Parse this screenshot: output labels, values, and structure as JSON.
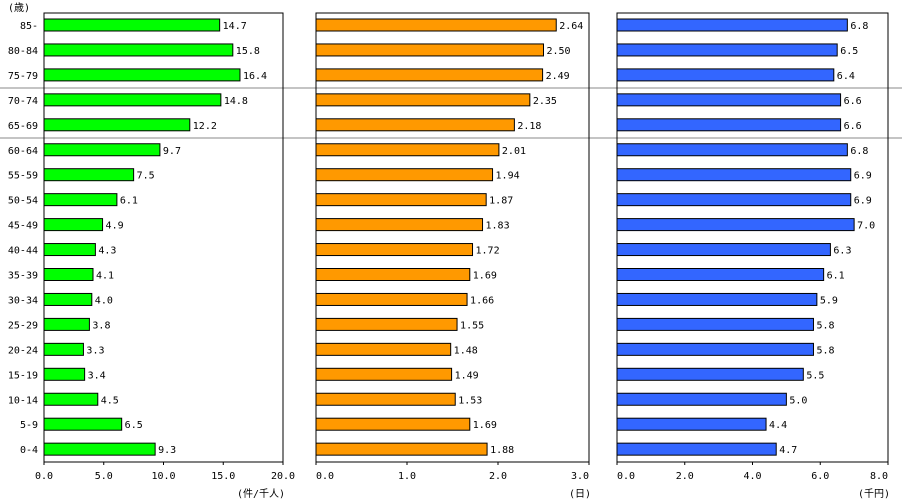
{
  "chart_data": [
    {
      "type": "bar",
      "orientation": "horizontal",
      "categories": [
        "85-",
        "80-84",
        "75-79",
        "70-74",
        "65-69",
        "60-64",
        "55-59",
        "50-54",
        "45-49",
        "40-44",
        "35-39",
        "30-34",
        "25-29",
        "20-24",
        "15-19",
        "10-14",
        "5-9",
        "0-4"
      ],
      "values": [
        14.7,
        15.8,
        16.4,
        14.8,
        12.2,
        9.7,
        7.5,
        6.1,
        4.9,
        4.3,
        4.1,
        4.0,
        3.8,
        3.3,
        3.4,
        4.5,
        6.5,
        9.3
      ],
      "value_labels": [
        "14.7",
        "15.8",
        "16.4",
        "14.8",
        "12.2",
        "9.7",
        "7.5",
        "6.1",
        "4.9",
        "4.3",
        "4.1",
        "4.0",
        "3.8",
        "3.3",
        "3.4",
        "4.5",
        "6.5",
        "9.3"
      ],
      "xlim": [
        0,
        20
      ],
      "ticks": [
        "0.0",
        "5.0",
        "10.0",
        "15.0",
        "20.0"
      ],
      "tick_values": [
        0,
        5,
        10,
        15,
        20
      ],
      "unit": "(件/千人)",
      "color": "#00ff00",
      "ylabel": "(歳)"
    },
    {
      "type": "bar",
      "orientation": "horizontal",
      "values": [
        2.64,
        2.5,
        2.49,
        2.35,
        2.18,
        2.01,
        1.94,
        1.87,
        1.83,
        1.72,
        1.69,
        1.66,
        1.55,
        1.48,
        1.49,
        1.53,
        1.69,
        1.88
      ],
      "value_labels": [
        "2.64",
        "2.50",
        "2.49",
        "2.35",
        "2.18",
        "2.01",
        "1.94",
        "1.87",
        "1.83",
        "1.72",
        "1.69",
        "1.66",
        "1.55",
        "1.48",
        "1.49",
        "1.53",
        "1.69",
        "1.88"
      ],
      "xlim": [
        0,
        3
      ],
      "ticks": [
        "0.0",
        "1.0",
        "2.0",
        "3.0"
      ],
      "tick_values": [
        0,
        1,
        2,
        3
      ],
      "unit": "(日)",
      "color": "#ff9900"
    },
    {
      "type": "bar",
      "orientation": "horizontal",
      "values": [
        6.8,
        6.5,
        6.4,
        6.6,
        6.6,
        6.8,
        6.9,
        6.9,
        7.0,
        6.3,
        6.1,
        5.9,
        5.8,
        5.8,
        5.5,
        5.0,
        4.4,
        4.7
      ],
      "value_labels": [
        "6.8",
        "6.5",
        "6.4",
        "6.6",
        "6.6",
        "6.8",
        "6.9",
        "6.9",
        "7.0",
        "6.3",
        "6.1",
        "5.9",
        "5.8",
        "5.8",
        "5.5",
        "5.0",
        "4.4",
        "4.7"
      ],
      "xlim": [
        0,
        8
      ],
      "ticks": [
        "0.0",
        "2.0",
        "4.0",
        "6.0",
        "8.0"
      ],
      "tick_values": [
        0,
        2,
        4,
        6,
        8
      ],
      "unit": "(千円)",
      "color": "#3366ff"
    }
  ]
}
